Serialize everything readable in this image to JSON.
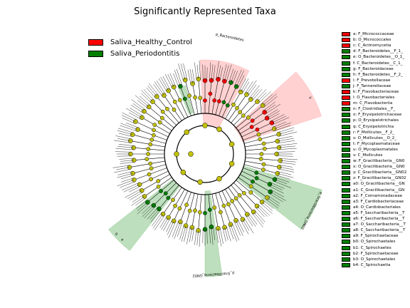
{
  "title": "Significantly Represented Taxa",
  "colors": {
    "healthy": "#ff0000",
    "periodontitis": "#008000",
    "node": "#c2c10a",
    "healthy_shade": "#ff9a9a",
    "perio_shade": "#6cb86c"
  },
  "legend": [
    {
      "label": "Saliva_Healthy_Control",
      "color": "#ff0000"
    },
    {
      "label": "Saliva_Periodontitis",
      "color": "#008000"
    }
  ],
  "taxa": [
    {
      "key": "a",
      "name": "a: F_Micrococcaceae",
      "group": "healthy"
    },
    {
      "key": "b",
      "name": "b: O_Micrococcales",
      "group": "healthy"
    },
    {
      "key": "c",
      "name": "c: C_Actinomycetia",
      "group": "healthy"
    },
    {
      "key": "d",
      "name": "d: F_Bacteroidetes__F_1_",
      "group": "periodontitis"
    },
    {
      "key": "e",
      "name": "e: O_Bacteroidetes__O_1_",
      "group": "periodontitis"
    },
    {
      "key": "f",
      "name": "f: C_Bacteroidetes__C_1_",
      "group": "periodontitis"
    },
    {
      "key": "g",
      "name": "g: F_Bacteroidaceae",
      "group": "periodontitis"
    },
    {
      "key": "h",
      "name": "h: F_Bacteroidetes__F_2_",
      "group": "periodontitis"
    },
    {
      "key": "i",
      "name": "i: F_Prevotellaceae",
      "group": "healthy"
    },
    {
      "key": "j",
      "name": "j: F_Tannerellaceae",
      "group": "periodontitis"
    },
    {
      "key": "k",
      "name": "k: F_Flavobacteriaceae",
      "group": "healthy"
    },
    {
      "key": "l",
      "name": "l: O_Flavobacteriales",
      "group": "healthy"
    },
    {
      "key": "m",
      "name": "m: C_Flavobacteriia",
      "group": "healthy"
    },
    {
      "key": "n",
      "name": "n: F_Clostridiales__F_",
      "group": "periodontitis"
    },
    {
      "key": "o",
      "name": "o: F_Erysipelotrichaceae",
      "group": "periodontitis"
    },
    {
      "key": "p",
      "name": "p: O_Erysipelotrichales",
      "group": "periodontitis"
    },
    {
      "key": "q",
      "name": "q: C_Erysipelotrichia",
      "group": "periodontitis"
    },
    {
      "key": "r",
      "name": "r: F_Mollicutes__F_2_",
      "group": "periodontitis"
    },
    {
      "key": "s",
      "name": "s: O_Mollicutes__O_2_",
      "group": "periodontitis"
    },
    {
      "key": "t",
      "name": "t: F_Mycoplasmataceae",
      "group": "periodontitis"
    },
    {
      "key": "u",
      "name": "u: O_Mycoplasmatales",
      "group": "periodontitis"
    },
    {
      "key": "v",
      "name": "v: C_Mollicutes",
      "group": "periodontitis"
    },
    {
      "key": "w",
      "name": "w: F_Gracilibacteria__GN0",
      "group": "periodontitis"
    },
    {
      "key": "x",
      "name": "x: O_Gracilibacteria__GN0",
      "group": "periodontitis"
    },
    {
      "key": "y",
      "name": "y: C_Gracilibacteria__GN02",
      "group": "periodontitis"
    },
    {
      "key": "z",
      "name": "z: F_Gracilibacteria__GN02",
      "group": "periodontitis"
    },
    {
      "key": "a0",
      "name": "a0: O_Gracilibacteria__GN",
      "group": "periodontitis"
    },
    {
      "key": "a1",
      "name": "a1: C_Gracilibacteria__GN",
      "group": "periodontitis"
    },
    {
      "key": "a2",
      "name": "a2: F_Comamonadaceae",
      "group": "periodontitis"
    },
    {
      "key": "a3",
      "name": "a3: F_Cardiobacteriaceae",
      "group": "periodontitis"
    },
    {
      "key": "a4",
      "name": "a4: O_Cardiobacteriales",
      "group": "periodontitis"
    },
    {
      "key": "a5",
      "name": "a5: F_Saccharibacteria__T",
      "group": "periodontitis"
    },
    {
      "key": "a6",
      "name": "a6: F_Saccharibacteria__T",
      "group": "periodontitis"
    },
    {
      "key": "a7",
      "name": "a7: O_Saccharibacteria__T",
      "group": "periodontitis"
    },
    {
      "key": "a8",
      "name": "a8: C_Saccharibacteria__T",
      "group": "periodontitis"
    },
    {
      "key": "a9",
      "name": "a9: F_Spirochaetaceae",
      "group": "periodontitis"
    },
    {
      "key": "b0",
      "name": "b0: O_Spirochaetales",
      "group": "periodontitis"
    },
    {
      "key": "b1",
      "name": "b1: C_Spirochaetes",
      "group": "periodontitis"
    },
    {
      "key": "b2",
      "name": "b2: F_Spirochaetaceae",
      "group": "periodontitis"
    },
    {
      "key": "b3",
      "name": "b3: O_Spirochaetales",
      "group": "periodontitis"
    },
    {
      "key": "b4",
      "name": "b4: C_Spirochaetia",
      "group": "periodontitis"
    }
  ],
  "sectors": [
    {
      "label": "p_Bacteroidetes",
      "group": "healthy"
    },
    {
      "label": "k",
      "group": "healthy"
    },
    {
      "label": "p_Gracilibacteria_GN02",
      "group": "periodontitis"
    },
    {
      "label": "p_Gracilibacteria_GN02",
      "group": "periodontitis"
    },
    {
      "label": "a",
      "group": "periodontitis"
    },
    {
      "label": "b",
      "group": "periodontitis"
    }
  ],
  "clade_letters": [
    "m",
    "l",
    "i",
    "a",
    "b",
    "c",
    "h",
    "g",
    "f",
    "e",
    "d",
    "j",
    "y",
    "x",
    "w",
    "z",
    "a0",
    "a1",
    "a3",
    "a4",
    "a5",
    "a6",
    "a7",
    "a8",
    "a9",
    "b0",
    "b1",
    "b2",
    "b3",
    "b4"
  ],
  "chart_data": {
    "type": "cladogram",
    "title": "Significantly Represented Taxa",
    "series": [
      {
        "name": "Saliva_Healthy_Control",
        "taxa": [
          "a",
          "b",
          "c",
          "i",
          "k",
          "l",
          "m"
        ]
      },
      {
        "name": "Saliva_Periodontitis",
        "taxa": [
          "d",
          "e",
          "f",
          "g",
          "h",
          "j",
          "n",
          "o",
          "p",
          "q",
          "r",
          "s",
          "t",
          "u",
          "v",
          "w",
          "x",
          "y",
          "z",
          "a0",
          "a1",
          "a2",
          "a3",
          "a4",
          "a5",
          "a6",
          "a7",
          "a8",
          "a9",
          "b0",
          "b1",
          "b2",
          "b3",
          "b4"
        ]
      }
    ]
  }
}
